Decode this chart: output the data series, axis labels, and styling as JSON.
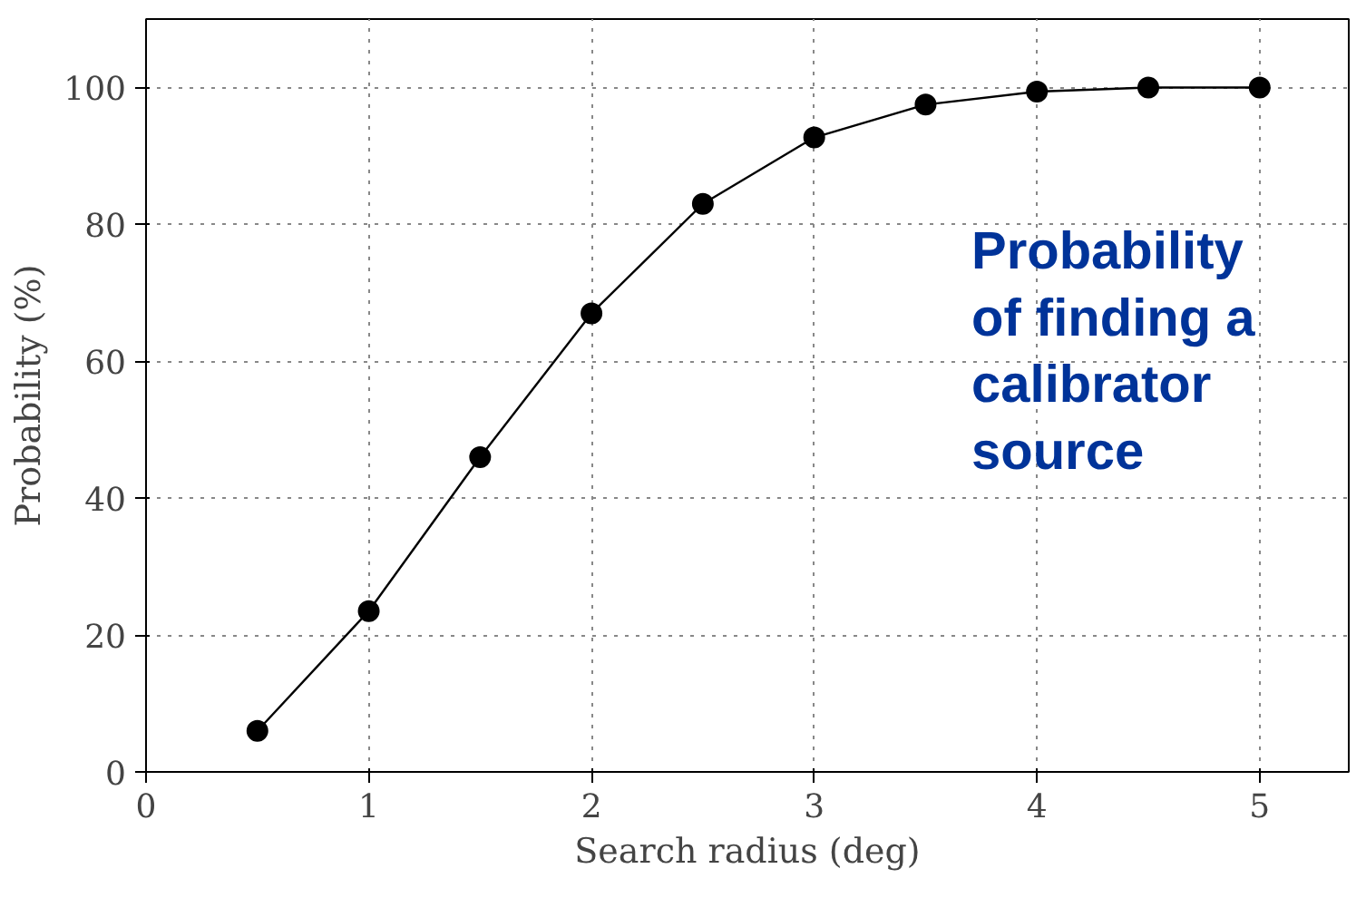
{
  "chart_data": {
    "type": "line",
    "xlabel": "Search radius (deg)",
    "ylabel": "Probability (%)",
    "x": [
      0.5,
      1,
      1.5,
      2,
      2.5,
      3,
      3.5,
      4,
      4.5,
      5
    ],
    "series": [
      {
        "color": "#000000",
        "values": [
          6,
          23.5,
          46,
          67,
          83,
          92.7,
          97.5,
          99.4,
          100,
          100
        ]
      }
    ],
    "xlim": [
      0,
      5.4
    ],
    "ylim": [
      0,
      110
    ],
    "xticks": [
      0,
      1,
      2,
      3,
      4,
      5
    ],
    "yticks": [
      0,
      20,
      40,
      60,
      80,
      100
    ],
    "grid": true,
    "marker": "circle",
    "line_style": "solid",
    "annotations": [
      "Probability of finding a calibrator source"
    ]
  }
}
